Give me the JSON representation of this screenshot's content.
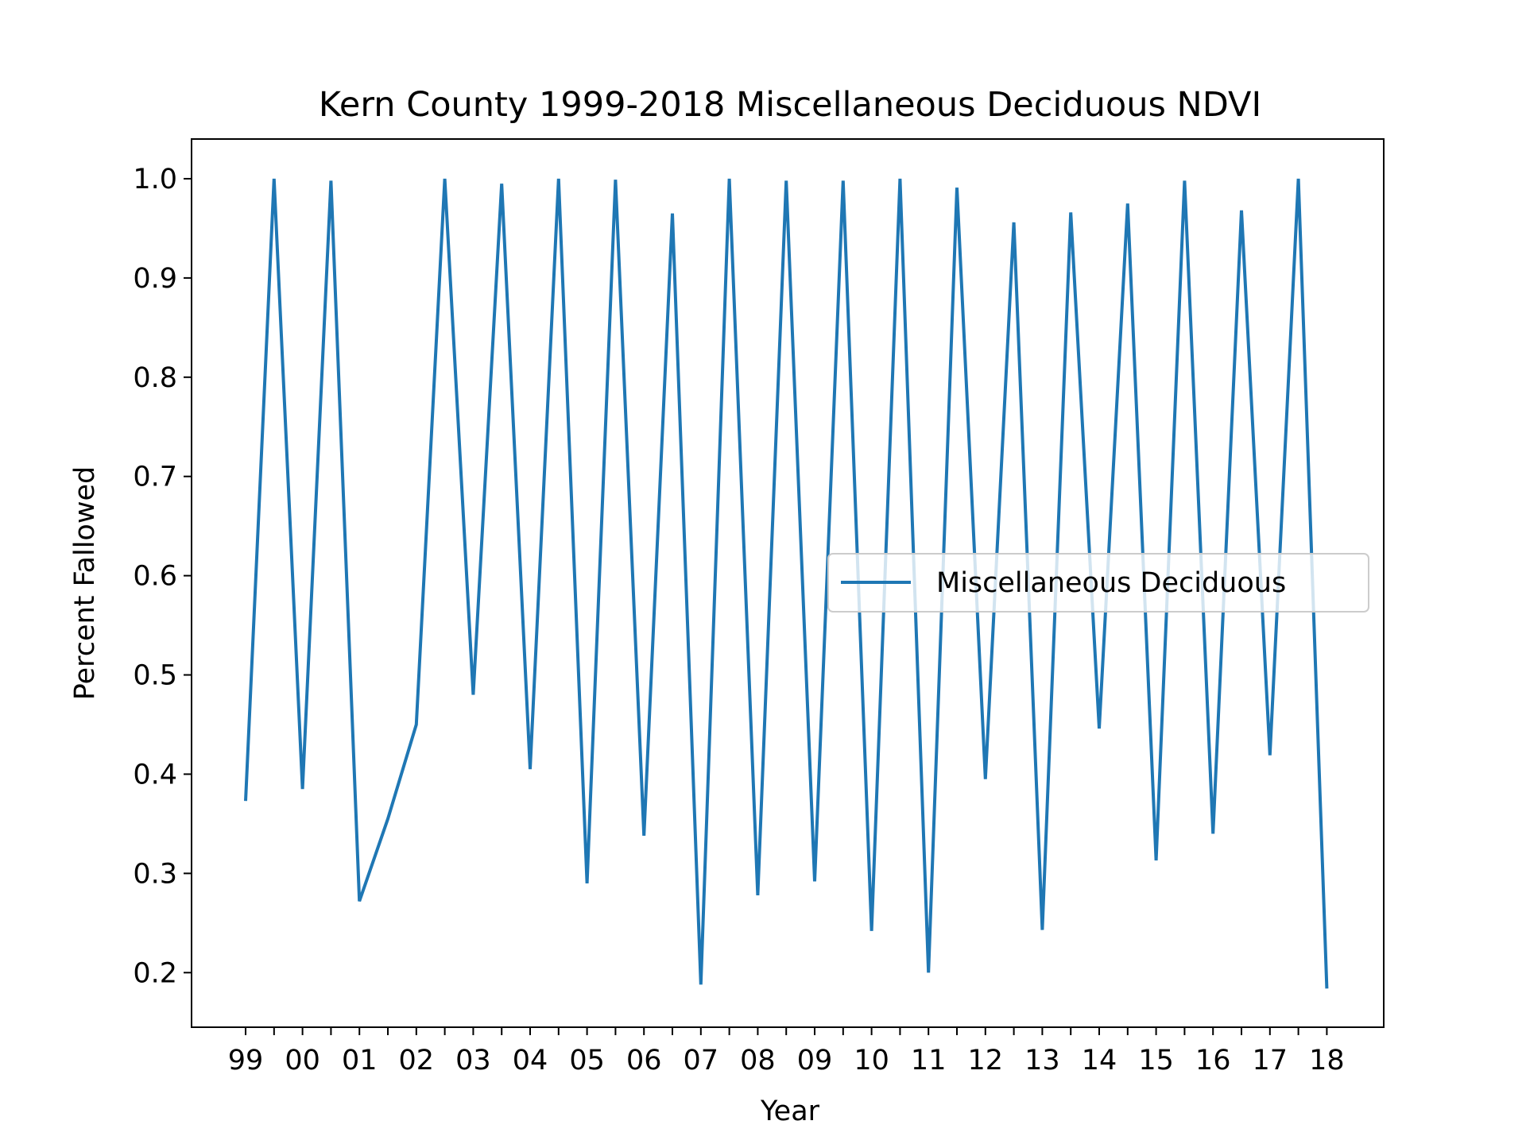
{
  "chart_data": {
    "type": "line",
    "title": "Kern County 1999-2018 Miscellaneous Deciduous NDVI",
    "xlabel": "Year",
    "ylabel": "Percent Fallowed",
    "x_tick_labels": [
      "99",
      "00",
      "01",
      "02",
      "03",
      "04",
      "05",
      "06",
      "07",
      "08",
      "09",
      "10",
      "11",
      "12",
      "13",
      "14",
      "15",
      "16",
      "17",
      "18"
    ],
    "y_ticks": [
      0.2,
      0.3,
      0.4,
      0.5,
      0.6,
      0.7,
      0.8,
      0.9,
      1.0
    ],
    "y_tick_labels": [
      "0.2",
      "0.3",
      "0.4",
      "0.5",
      "0.6",
      "0.7",
      "0.8",
      "0.9",
      "1.0"
    ],
    "xlim": [
      -0.95,
      20
    ],
    "ylim": [
      0.145,
      1.04
    ],
    "grid": false,
    "legend_position": "center-right",
    "series": [
      {
        "name": "Miscellaneous Deciduous",
        "color": "#1f77b4",
        "x": [
          0,
          0.5,
          1,
          1.5,
          2,
          2.5,
          3,
          3.5,
          4,
          4.5,
          5,
          5.5,
          6,
          6.5,
          7,
          7.5,
          8,
          8.5,
          9,
          9.5,
          10,
          10.5,
          11,
          11.5,
          12,
          12.5,
          13,
          13.5,
          14,
          14.5,
          15,
          15.5,
          16,
          16.5,
          17,
          17.5,
          18,
          18.5,
          19
        ],
        "values": [
          0.373,
          1.0,
          0.385,
          0.998,
          0.272,
          0.355,
          0.45,
          1.0,
          0.48,
          0.995,
          0.405,
          1.0,
          0.29,
          0.999,
          0.338,
          0.965,
          0.188,
          1.0,
          0.278,
          0.998,
          0.292,
          0.998,
          0.242,
          1.0,
          0.2,
          0.991,
          0.395,
          0.956,
          0.243,
          0.966,
          0.446,
          0.975,
          0.313,
          0.998,
          0.34,
          0.968,
          0.419,
          1.0,
          0.184
        ]
      }
    ]
  }
}
